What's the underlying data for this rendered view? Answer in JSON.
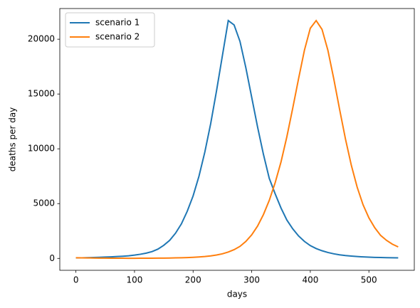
{
  "chart_data": {
    "type": "line",
    "x_label": "days",
    "y_label": "deaths per day",
    "x": [
      0,
      10,
      20,
      30,
      40,
      50,
      60,
      70,
      80,
      90,
      100,
      110,
      120,
      130,
      140,
      150,
      160,
      170,
      180,
      190,
      200,
      210,
      220,
      230,
      240,
      250,
      260,
      270,
      280,
      290,
      300,
      310,
      320,
      330,
      340,
      350,
      360,
      370,
      380,
      390,
      400,
      410,
      420,
      430,
      440,
      450,
      460,
      470,
      480,
      490,
      500,
      510,
      520,
      530,
      540,
      550
    ],
    "series": [
      {
        "name": "scenario 1",
        "color": "#1f77b4",
        "values": [
          50,
          55,
          65,
          80,
          100,
          120,
          140,
          170,
          200,
          240,
          300,
          380,
          480,
          620,
          850,
          1200,
          1650,
          2300,
          3150,
          4300,
          5700,
          7500,
          9700,
          12300,
          15300,
          18500,
          21700,
          21300,
          19800,
          17400,
          14700,
          12000,
          9500,
          7300,
          5900,
          4600,
          3500,
          2700,
          2050,
          1550,
          1170,
          900,
          700,
          540,
          420,
          330,
          260,
          210,
          170,
          140,
          115,
          95,
          80,
          70,
          60,
          50
        ]
      },
      {
        "name": "scenario 2",
        "color": "#ff7f0e",
        "values": [
          60,
          55,
          45,
          38,
          30,
          25,
          20,
          17,
          15,
          14,
          14,
          15,
          17,
          20,
          25,
          30,
          38,
          48,
          60,
          78,
          100,
          130,
          170,
          230,
          310,
          420,
          580,
          800,
          1100,
          1550,
          2150,
          2950,
          4000,
          5300,
          6900,
          8800,
          11100,
          13700,
          16400,
          19000,
          21000,
          21700,
          20900,
          19000,
          16400,
          13600,
          10900,
          8500,
          6500,
          4900,
          3700,
          2800,
          2100,
          1650,
          1300,
          1050
        ]
      }
    ],
    "xlim": [
      -27.5,
      577.5
    ],
    "ylim": [
      -1085,
      22800
    ],
    "xticks": [
      0,
      100,
      200,
      300,
      400,
      500
    ],
    "yticks": [
      0,
      5000,
      10000,
      15000,
      20000
    ],
    "grid": false,
    "legend": "upper left"
  }
}
